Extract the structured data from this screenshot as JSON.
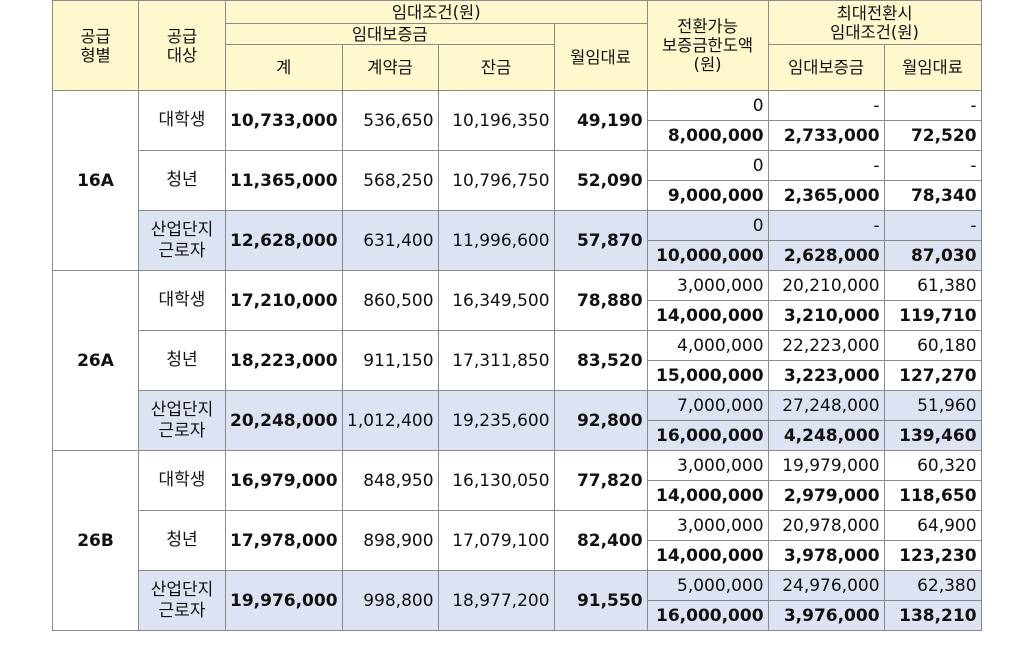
{
  "headers": {
    "type": "공급\n형별",
    "target": "공급\n대상",
    "rent_conditions": "임대조건(원)",
    "deposit": "임대보증금",
    "total": "계",
    "contract": "계약금",
    "balance": "잔금",
    "monthly": "월임대료",
    "convertible": "전환가능\n보증금한도액\n(원)",
    "max_conversion": "최대전환시\n임대조건(원)",
    "max_deposit": "임대보증금",
    "max_monthly": "월임대료"
  },
  "groups": [
    {
      "type": "16A",
      "rows": [
        {
          "target": "대학생",
          "total": "10,733,000",
          "contract": "536,650",
          "balance": "10,196,350",
          "monthly": "49,190",
          "conv1": "0",
          "dep1": "-",
          "mon1": "-",
          "conv2": "8,000,000",
          "dep2": "2,733,000",
          "mon2": "72,520"
        },
        {
          "target": "청년",
          "total": "11,365,000",
          "contract": "568,250",
          "balance": "10,796,750",
          "monthly": "52,090",
          "conv1": "0",
          "dep1": "-",
          "mon1": "-",
          "conv2": "9,000,000",
          "dep2": "2,365,000",
          "mon2": "78,340"
        },
        {
          "target": "산업단지\n근로자",
          "total": "12,628,000",
          "contract": "631,400",
          "balance": "11,996,600",
          "monthly": "57,870",
          "conv1": "0",
          "dep1": "-",
          "mon1": "-",
          "conv2": "10,000,000",
          "dep2": "2,628,000",
          "mon2": "87,030"
        }
      ]
    },
    {
      "type": "26A",
      "rows": [
        {
          "target": "대학생",
          "total": "17,210,000",
          "contract": "860,500",
          "balance": "16,349,500",
          "monthly": "78,880",
          "conv1": "3,000,000",
          "dep1": "20,210,000",
          "mon1": "61,380",
          "conv2": "14,000,000",
          "dep2": "3,210,000",
          "mon2": "119,710"
        },
        {
          "target": "청년",
          "total": "18,223,000",
          "contract": "911,150",
          "balance": "17,311,850",
          "monthly": "83,520",
          "conv1": "4,000,000",
          "dep1": "22,223,000",
          "mon1": "60,180",
          "conv2": "15,000,000",
          "dep2": "3,223,000",
          "mon2": "127,270"
        },
        {
          "target": "산업단지\n근로자",
          "total": "20,248,000",
          "contract": "1,012,400",
          "balance": "19,235,600",
          "monthly": "92,800",
          "conv1": "7,000,000",
          "dep1": "27,248,000",
          "mon1": "51,960",
          "conv2": "16,000,000",
          "dep2": "4,248,000",
          "mon2": "139,460"
        }
      ]
    },
    {
      "type": "26B",
      "rows": [
        {
          "target": "대학생",
          "total": "16,979,000",
          "contract": "848,950",
          "balance": "16,130,050",
          "monthly": "77,820",
          "conv1": "3,000,000",
          "dep1": "19,979,000",
          "mon1": "60,320",
          "conv2": "14,000,000",
          "dep2": "2,979,000",
          "mon2": "118,650"
        },
        {
          "target": "청년",
          "total": "17,978,000",
          "contract": "898,900",
          "balance": "17,079,100",
          "monthly": "82,400",
          "conv1": "3,000,000",
          "dep1": "20,978,000",
          "mon1": "64,900",
          "conv2": "14,000,000",
          "dep2": "3,978,000",
          "mon2": "123,230"
        },
        {
          "target": "산업단지\n근로자",
          "total": "19,976,000",
          "contract": "998,800",
          "balance": "18,977,200",
          "monthly": "91,550",
          "conv1": "5,000,000",
          "dep1": "24,976,000",
          "mon1": "62,380",
          "conv2": "16,000,000",
          "dep2": "3,976,000",
          "mon2": "138,210"
        }
      ]
    }
  ]
}
